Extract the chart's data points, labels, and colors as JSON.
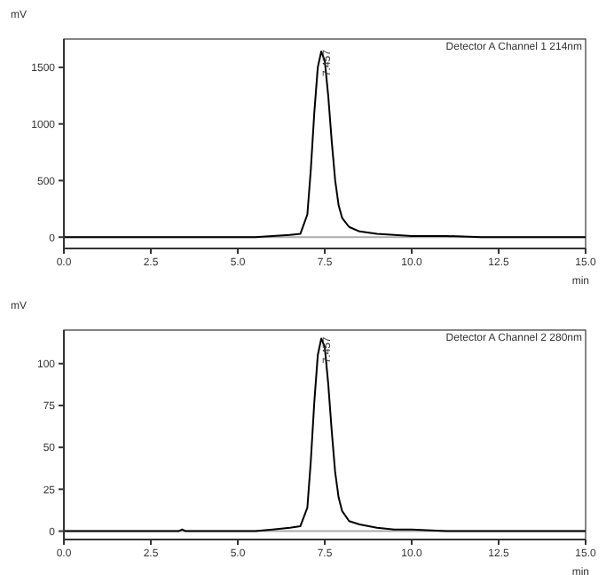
{
  "chart_data": [
    {
      "type": "line",
      "xlabel": "min",
      "ylabel": "mV",
      "annotations": [
        "Detector A Channel 1 214nm",
        {
          "text": "7.457",
          "x": 7.4,
          "y": 1640
        }
      ],
      "x": [
        0,
        5.0,
        5.5,
        6.0,
        6.5,
        6.8,
        7.0,
        7.1,
        7.2,
        7.3,
        7.4,
        7.5,
        7.6,
        7.7,
        7.8,
        7.9,
        8.0,
        8.2,
        8.5,
        9.0,
        9.5,
        10.0,
        11.0,
        12.0,
        15.0
      ],
      "series": [
        {
          "color": "#000000",
          "values": [
            0,
            0,
            0,
            10,
            20,
            30,
            200,
            600,
            1100,
            1500,
            1640,
            1560,
            1250,
            850,
            500,
            280,
            170,
            90,
            50,
            30,
            20,
            10,
            10,
            0,
            0
          ]
        }
      ],
      "xlim": [
        0,
        15
      ],
      "xticks": [
        {
          "value": 0,
          "label": "0.0"
        },
        {
          "value": 2.5,
          "label": "2.5"
        },
        {
          "value": 5,
          "label": "5.0"
        },
        {
          "value": 7.5,
          "label": "7.5"
        },
        {
          "value": 10,
          "label": "10.0"
        },
        {
          "value": 12.5,
          "label": "12.5"
        },
        {
          "value": 15,
          "label": "15.0"
        }
      ],
      "ylim": [
        -100,
        1750
      ],
      "yticks": [
        0,
        500,
        1000,
        1500
      ],
      "ref_lines": [
        {
          "axis": "y",
          "value": 0,
          "color": "#aaaaaa"
        }
      ],
      "grid": false,
      "legend": false,
      "marker": "none"
    },
    {
      "type": "line",
      "xlabel": "min",
      "ylabel": "mV",
      "annotations": [
        "Detector A Channel 2 280nm",
        {
          "text": "7.457",
          "x": 7.4,
          "y": 115
        }
      ],
      "x": [
        0,
        3.3,
        3.4,
        3.5,
        5.0,
        5.5,
        6.0,
        6.5,
        6.8,
        7.0,
        7.1,
        7.2,
        7.3,
        7.4,
        7.5,
        7.6,
        7.7,
        7.8,
        7.9,
        8.0,
        8.2,
        8.5,
        9.0,
        9.5,
        10.0,
        11.0,
        15.0
      ],
      "series": [
        {
          "color": "#000000",
          "values": [
            0,
            0,
            1,
            0,
            0,
            0,
            1,
            2,
            3,
            14,
            42,
            77,
            105,
            115,
            110,
            88,
            60,
            35,
            20,
            12,
            6,
            4,
            2,
            1,
            1,
            0,
            0
          ]
        }
      ],
      "xlim": [
        0,
        15
      ],
      "xticks": [
        {
          "value": 0,
          "label": "0.0"
        },
        {
          "value": 2.5,
          "label": "2.5"
        },
        {
          "value": 5,
          "label": "5.0"
        },
        {
          "value": 7.5,
          "label": "7.5"
        },
        {
          "value": 10,
          "label": "10.0"
        },
        {
          "value": 12.5,
          "label": "12.5"
        },
        {
          "value": 15,
          "label": "15.0"
        }
      ],
      "ylim": [
        -5,
        120
      ],
      "yticks": [
        0,
        25,
        50,
        75,
        100
      ],
      "ref_lines": [
        {
          "axis": "y",
          "value": 0,
          "color": "#aaaaaa"
        }
      ],
      "grid": false,
      "legend": false,
      "marker": "none"
    }
  ]
}
